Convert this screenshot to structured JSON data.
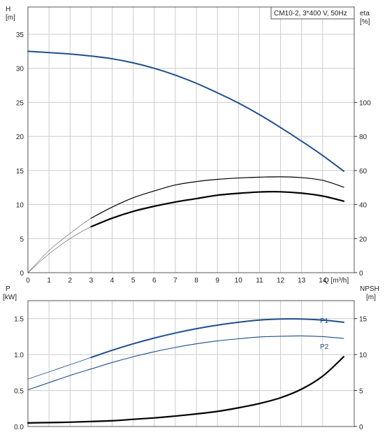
{
  "legend_box": "CM10-2, 3*400 V, 50Hz",
  "top_plot": {
    "left_axis_label": "H",
    "left_axis_unit": "[m]",
    "right_axis_label": "eta",
    "right_axis_unit": "[%]",
    "x_axis_label": "Q [m³/h]",
    "y_ticks": [
      "0",
      "5",
      "10",
      "15",
      "20",
      "25",
      "30",
      "35"
    ],
    "eta_ticks": [
      "0",
      "20",
      "40",
      "60",
      "80",
      "100"
    ],
    "x_ticks": [
      "0",
      "1",
      "2",
      "3",
      "4",
      "5",
      "6",
      "7",
      "8",
      "9",
      "10",
      "11",
      "12",
      "13",
      "14"
    ]
  },
  "bottom_plot": {
    "left_axis_label": "P",
    "left_axis_unit": "[kW]",
    "right_axis_label": "NPSH",
    "right_axis_unit": "[m]",
    "y_ticks": [
      "0.0",
      "0.5",
      "1.0",
      "1.5"
    ],
    "npsh_ticks": [
      "0",
      "5",
      "10",
      "15"
    ],
    "p1_label": "P1",
    "p2_label": "P2"
  },
  "colors": {
    "head": "#1f4e8c",
    "power": "#1f4e8c",
    "eta": "#000000",
    "npsh": "#000000",
    "grid": "#cccccc",
    "axis": "#333333"
  },
  "chart_data": [
    {
      "type": "line",
      "x_unit": "m³/h",
      "xlim": [
        0,
        15.5
      ],
      "y_left_unit": "m",
      "ylim_left": [
        0,
        39
      ],
      "y_right_unit": "%",
      "ylim_right": [
        0,
        156
      ],
      "grid": true,
      "series": [
        {
          "axis": "left",
          "x": [
            0,
            1,
            2,
            3,
            4,
            5,
            6,
            7,
            8,
            9,
            10,
            11,
            12,
            13,
            14,
            15
          ],
          "y": [
            32.5,
            32.3,
            32.1,
            31.8,
            31.4,
            30.8,
            30.0,
            29.0,
            27.8,
            26.4,
            24.9,
            23.2,
            21.3,
            19.3,
            17.2,
            14.9
          ]
        },
        {
          "axis": "right",
          "x": [
            0,
            1,
            2,
            3,
            4,
            5,
            6,
            7,
            8,
            9,
            10,
            11,
            12,
            13,
            14,
            15
          ],
          "y": [
            0,
            13,
            23,
            32,
            38.5,
            44,
            48,
            51.5,
            53.5,
            54.8,
            55.6,
            56.1,
            56.3,
            55.8,
            54.2,
            50.2
          ]
        },
        {
          "axis": "right",
          "x": [
            0,
            1,
            2,
            3,
            4,
            5,
            6,
            7,
            8,
            9,
            10,
            11,
            12,
            13,
            14,
            15
          ],
          "y": [
            0,
            11,
            20,
            27,
            32,
            36,
            39,
            41.5,
            43.5,
            45.5,
            46.6,
            47.4,
            47.5,
            46.7,
            45,
            42
          ]
        }
      ]
    },
    {
      "type": "line",
      "x_unit": "m³/h",
      "xlim": [
        0,
        15.5
      ],
      "y_left_unit": "kW",
      "ylim_left": [
        0,
        1.75
      ],
      "y_right_unit": "m",
      "ylim_right": [
        0,
        17.5
      ],
      "grid": true,
      "series": [
        {
          "name": "P1",
          "axis": "left",
          "x": [
            0,
            1,
            2,
            3,
            4,
            5,
            6,
            7,
            8,
            9,
            10,
            11,
            12,
            13,
            14,
            15
          ],
          "y": [
            0.66,
            0.76,
            0.86,
            0.96,
            1.06,
            1.15,
            1.23,
            1.3,
            1.36,
            1.41,
            1.45,
            1.48,
            1.495,
            1.495,
            1.48,
            1.45
          ]
        },
        {
          "name": "P2",
          "axis": "left",
          "x": [
            0,
            1,
            2,
            3,
            4,
            5,
            6,
            7,
            8,
            9,
            10,
            11,
            12,
            13,
            14,
            15
          ],
          "y": [
            0.51,
            0.61,
            0.71,
            0.8,
            0.89,
            0.97,
            1.04,
            1.1,
            1.15,
            1.19,
            1.22,
            1.245,
            1.255,
            1.26,
            1.25,
            1.225
          ]
        },
        {
          "axis": "right",
          "x": [
            0,
            1,
            2,
            3,
            4,
            5,
            6,
            7,
            8,
            9,
            10,
            11,
            12,
            13,
            14,
            15
          ],
          "y": [
            0.5,
            0.55,
            0.6,
            0.7,
            0.8,
            1.0,
            1.2,
            1.45,
            1.75,
            2.1,
            2.6,
            3.2,
            4.0,
            5.2,
            7.0,
            9.7
          ]
        }
      ]
    }
  ]
}
